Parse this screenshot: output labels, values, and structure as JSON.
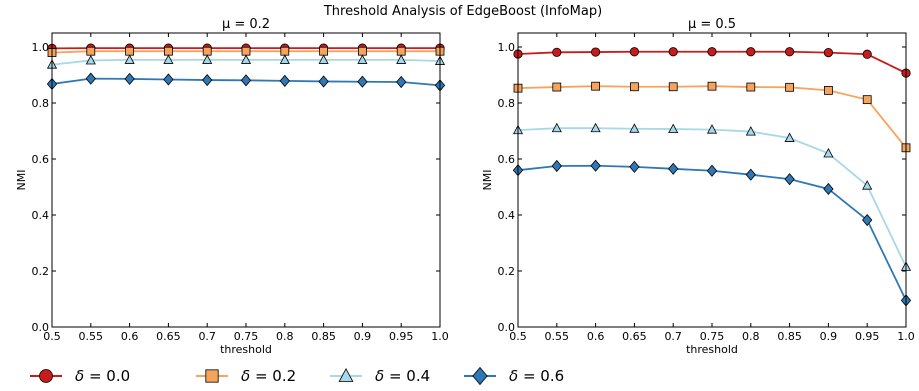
{
  "figure": {
    "title": "Threshold Analysis of EdgeBoost (InfoMap)"
  },
  "series_styles": [
    {
      "color": "#c81c1c",
      "marker": "circle"
    },
    {
      "color": "#f5a45e",
      "marker": "square"
    },
    {
      "color": "#a6d8ea",
      "marker": "triangle"
    },
    {
      "color": "#2f78b5",
      "marker": "diamond"
    }
  ],
  "legend": {
    "placement": "bottom",
    "symbol": "δ",
    "entries": [
      {
        "symbol": "δ",
        "label": " = 0.0"
      },
      {
        "symbol": "δ",
        "label": " = 0.2"
      },
      {
        "symbol": "δ",
        "label": " = 0.4"
      },
      {
        "symbol": "δ",
        "label": " = 0.6"
      }
    ]
  },
  "chart_data": [
    {
      "type": "line",
      "title": "μ = 0.2",
      "xlabel": "threshold",
      "ylabel": "NMI",
      "xlim": [
        0.5,
        1.0
      ],
      "ylim": [
        0.0,
        1.05
      ],
      "x_ticks": [
        "0.5",
        "0.55",
        "0.6",
        "0.65",
        "0.7",
        "0.75",
        "0.8",
        "0.85",
        "0.9",
        "0.95",
        "1.0"
      ],
      "y_ticks": [
        "0.0",
        "0.2",
        "0.4",
        "0.6",
        "0.8",
        "1.0"
      ],
      "grid": false,
      "x": [
        0.5,
        0.55,
        0.6,
        0.65,
        0.7,
        0.75,
        0.8,
        0.85,
        0.9,
        0.95,
        1.0
      ],
      "series": [
        {
          "name": "δ = 0.0",
          "values": [
            0.995,
            0.996,
            0.996,
            0.996,
            0.996,
            0.996,
            0.996,
            0.996,
            0.996,
            0.996,
            0.996
          ]
        },
        {
          "name": "δ = 0.2",
          "values": [
            0.98,
            0.985,
            0.985,
            0.985,
            0.985,
            0.985,
            0.985,
            0.985,
            0.985,
            0.985,
            0.985
          ]
        },
        {
          "name": "δ = 0.4",
          "values": [
            0.937,
            0.952,
            0.954,
            0.954,
            0.954,
            0.954,
            0.954,
            0.954,
            0.954,
            0.954,
            0.95
          ]
        },
        {
          "name": "δ = 0.6",
          "values": [
            0.868,
            0.887,
            0.886,
            0.884,
            0.882,
            0.881,
            0.879,
            0.877,
            0.876,
            0.875,
            0.863
          ]
        }
      ]
    },
    {
      "type": "line",
      "title": "μ = 0.5",
      "xlabel": "threshold",
      "ylabel": "NMI",
      "xlim": [
        0.5,
        1.0
      ],
      "ylim": [
        0.0,
        1.05
      ],
      "x_ticks": [
        "0.5",
        "0.55",
        "0.6",
        "0.65",
        "0.7",
        "0.75",
        "0.8",
        "0.85",
        "0.9",
        "0.95",
        "1.0"
      ],
      "y_ticks": [
        "0.0",
        "0.2",
        "0.4",
        "0.6",
        "0.8",
        "1.0"
      ],
      "grid": false,
      "x": [
        0.5,
        0.55,
        0.6,
        0.65,
        0.7,
        0.75,
        0.8,
        0.85,
        0.9,
        0.95,
        1.0
      ],
      "series": [
        {
          "name": "δ = 0.0",
          "values": [
            0.975,
            0.981,
            0.982,
            0.983,
            0.983,
            0.983,
            0.983,
            0.983,
            0.98,
            0.974,
            0.907
          ]
        },
        {
          "name": "δ = 0.2",
          "values": [
            0.853,
            0.857,
            0.86,
            0.858,
            0.858,
            0.86,
            0.857,
            0.856,
            0.845,
            0.812,
            0.64
          ]
        },
        {
          "name": "δ = 0.4",
          "values": [
            0.703,
            0.71,
            0.71,
            0.708,
            0.707,
            0.705,
            0.698,
            0.675,
            0.62,
            0.505,
            0.215
          ]
        },
        {
          "name": "δ = 0.6",
          "values": [
            0.56,
            0.575,
            0.576,
            0.572,
            0.565,
            0.558,
            0.544,
            0.528,
            0.493,
            0.382,
            0.095
          ]
        }
      ]
    }
  ]
}
